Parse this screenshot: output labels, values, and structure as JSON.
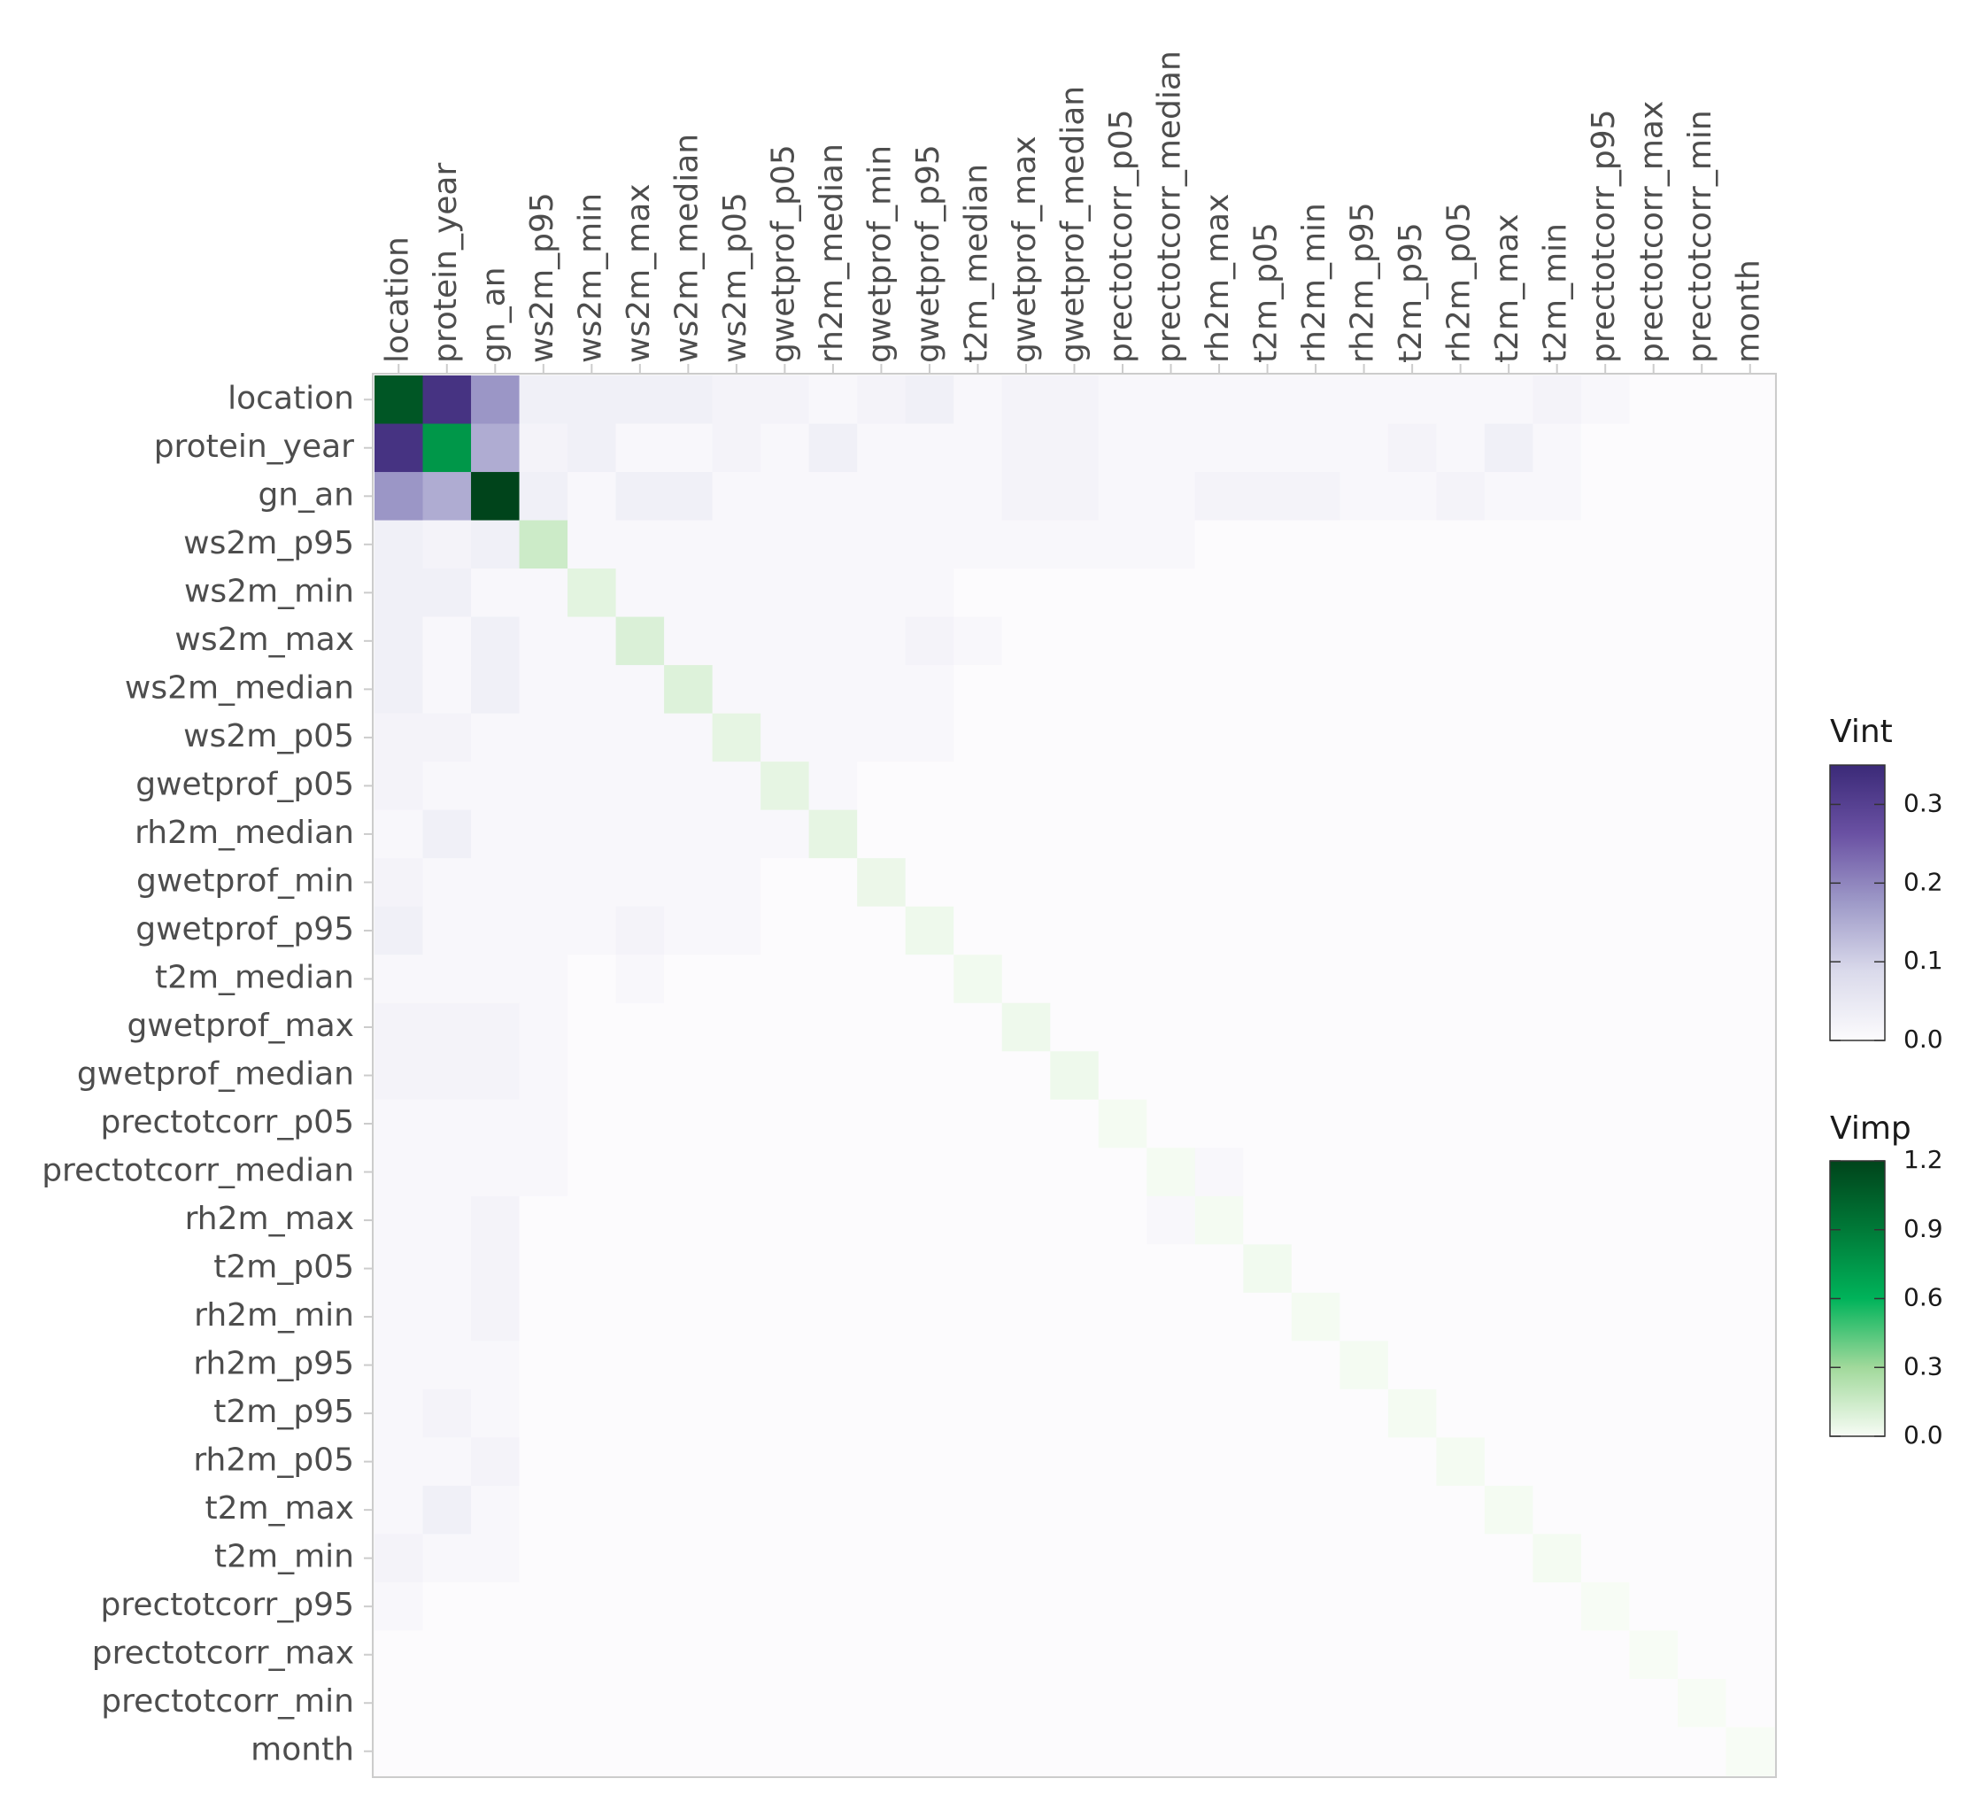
{
  "chart_data": {
    "type": "heatmap",
    "categories": [
      "location",
      "protein_year",
      "gn_an",
      "ws2m_p95",
      "ws2m_min",
      "ws2m_max",
      "ws2m_median",
      "ws2m_p05",
      "gwetprof_p05",
      "rh2m_median",
      "gwetprof_min",
      "gwetprof_p95",
      "t2m_median",
      "gwetprof_max",
      "gwetprof_median",
      "prectotcorr_p05",
      "prectotcorr_median",
      "rh2m_max",
      "t2m_p05",
      "rh2m_min",
      "rh2m_p95",
      "t2m_p95",
      "rh2m_p05",
      "t2m_max",
      "t2m_min",
      "prectotcorr_p95",
      "prectotcorr_max",
      "prectotcorr_min",
      "month"
    ],
    "vimp": [
      1.1,
      0.75,
      1.2,
      0.15,
      0.07,
      0.1,
      0.09,
      0.06,
      0.06,
      0.06,
      0.04,
      0.03,
      0.02,
      0.03,
      0.03,
      0.01,
      0.01,
      0.01,
      0.02,
      0.01,
      0.01,
      0.01,
      0.01,
      0.01,
      0.01,
      0,
      0,
      0,
      0
    ],
    "vint": [
      [
        null,
        0.33,
        0.18,
        0.03,
        0.03,
        0.03,
        0.03,
        0.02,
        0.02,
        0.01,
        0.02,
        0.03,
        0.01,
        0.02,
        0.02,
        0.01,
        0.01,
        0.01,
        0.01,
        0.01,
        0.01,
        0.01,
        0.01,
        0.01,
        0.02,
        0.01,
        0,
        0,
        0
      ],
      [
        0.33,
        null,
        0.15,
        0.02,
        0.03,
        0.01,
        0.01,
        0.02,
        0.01,
        0.03,
        0.01,
        0.01,
        0.01,
        0.02,
        0.02,
        0.01,
        0.01,
        0.01,
        0.01,
        0.01,
        0.01,
        0.02,
        0.01,
        0.03,
        0.01,
        0,
        0,
        0,
        0
      ],
      [
        0.18,
        0.15,
        null,
        0.03,
        0.01,
        0.03,
        0.03,
        0.01,
        0.01,
        0.01,
        0.01,
        0.01,
        0.01,
        0.02,
        0.02,
        0.01,
        0.01,
        0.02,
        0.02,
        0.02,
        0.01,
        0.01,
        0.02,
        0.01,
        0.01,
        0,
        0,
        0,
        0
      ],
      [
        0.03,
        0.02,
        0.03,
        null,
        0.01,
        0.01,
        0.01,
        0.01,
        0.01,
        0.01,
        0.01,
        0.01,
        0.01,
        0.01,
        0.01,
        0.01,
        0.01,
        0,
        0,
        0,
        0,
        0,
        0,
        0,
        0,
        0,
        0,
        0,
        0
      ],
      [
        0.03,
        0.03,
        0.01,
        0.01,
        null,
        0.01,
        0.01,
        0.01,
        0.01,
        0.01,
        0.01,
        0.01,
        0,
        0,
        0,
        0,
        0,
        0,
        0,
        0,
        0,
        0,
        0,
        0,
        0,
        0,
        0,
        0,
        0
      ],
      [
        0.03,
        0.01,
        0.03,
        0.01,
        0.01,
        null,
        0.01,
        0.01,
        0.01,
        0.01,
        0.01,
        0.02,
        0.01,
        0,
        0,
        0,
        0,
        0,
        0,
        0,
        0,
        0,
        0,
        0,
        0,
        0,
        0,
        0,
        0
      ],
      [
        0.03,
        0.01,
        0.03,
        0.01,
        0.01,
        0.01,
        null,
        0.01,
        0.01,
        0.01,
        0.01,
        0.01,
        0,
        0,
        0,
        0,
        0,
        0,
        0,
        0,
        0,
        0,
        0,
        0,
        0,
        0,
        0,
        0,
        0
      ],
      [
        0.02,
        0.02,
        0.01,
        0.01,
        0.01,
        0.01,
        0.01,
        null,
        0.01,
        0.01,
        0.01,
        0.01,
        0,
        0,
        0,
        0,
        0,
        0,
        0,
        0,
        0,
        0,
        0,
        0,
        0,
        0,
        0,
        0,
        0
      ],
      [
        0.02,
        0.01,
        0.01,
        0.01,
        0.01,
        0.01,
        0.01,
        0.01,
        null,
        0.01,
        0,
        0,
        0,
        0,
        0,
        0,
        0,
        0,
        0,
        0,
        0,
        0,
        0,
        0,
        0,
        0,
        0,
        0,
        0
      ],
      [
        0.01,
        0.03,
        0.01,
        0.01,
        0.01,
        0.01,
        0.01,
        0.01,
        0.01,
        null,
        0,
        0,
        0,
        0,
        0,
        0,
        0,
        0,
        0,
        0,
        0,
        0,
        0,
        0,
        0,
        0,
        0,
        0,
        0
      ],
      [
        0.02,
        0.01,
        0.01,
        0.01,
        0.01,
        0.01,
        0.01,
        0.01,
        0,
        0,
        null,
        0,
        0,
        0,
        0,
        0,
        0,
        0,
        0,
        0,
        0,
        0,
        0,
        0,
        0,
        0,
        0,
        0,
        0
      ],
      [
        0.03,
        0.01,
        0.01,
        0.01,
        0.01,
        0.02,
        0.01,
        0.01,
        0,
        0,
        0,
        null,
        0,
        0,
        0,
        0,
        0,
        0,
        0,
        0,
        0,
        0,
        0,
        0,
        0,
        0,
        0,
        0,
        0
      ],
      [
        0.01,
        0.01,
        0.01,
        0.01,
        0,
        0.01,
        0,
        0,
        0,
        0,
        0,
        0,
        null,
        0,
        0,
        0,
        0,
        0,
        0,
        0,
        0,
        0,
        0,
        0,
        0,
        0,
        0,
        0,
        0
      ],
      [
        0.02,
        0.02,
        0.02,
        0.01,
        0,
        0,
        0,
        0,
        0,
        0,
        0,
        0,
        0,
        null,
        0,
        0,
        0,
        0,
        0,
        0,
        0,
        0,
        0,
        0,
        0,
        0,
        0,
        0,
        0
      ],
      [
        0.02,
        0.02,
        0.02,
        0.01,
        0,
        0,
        0,
        0,
        0,
        0,
        0,
        0,
        0,
        0,
        null,
        0,
        0,
        0,
        0,
        0,
        0,
        0,
        0,
        0,
        0,
        0,
        0,
        0,
        0
      ],
      [
        0.01,
        0.01,
        0.01,
        0.01,
        0,
        0,
        0,
        0,
        0,
        0,
        0,
        0,
        0,
        0,
        0,
        null,
        0,
        0,
        0,
        0,
        0,
        0,
        0,
        0,
        0,
        0,
        0,
        0,
        0
      ],
      [
        0.01,
        0.01,
        0.01,
        0.01,
        0,
        0,
        0,
        0,
        0,
        0,
        0,
        0,
        0,
        0,
        0,
        0,
        null,
        0.01,
        0,
        0,
        0,
        0,
        0,
        0,
        0,
        0,
        0,
        0,
        0
      ],
      [
        0.01,
        0.01,
        0.02,
        0,
        0,
        0,
        0,
        0,
        0,
        0,
        0,
        0,
        0,
        0,
        0,
        0,
        0.01,
        null,
        0,
        0,
        0,
        0,
        0,
        0,
        0,
        0,
        0,
        0,
        0
      ],
      [
        0.01,
        0.01,
        0.02,
        0,
        0,
        0,
        0,
        0,
        0,
        0,
        0,
        0,
        0,
        0,
        0,
        0,
        0,
        0,
        null,
        0,
        0,
        0,
        0,
        0,
        0,
        0,
        0,
        0,
        0
      ],
      [
        0.01,
        0.01,
        0.02,
        0,
        0,
        0,
        0,
        0,
        0,
        0,
        0,
        0,
        0,
        0,
        0,
        0,
        0,
        0,
        0,
        null,
        0,
        0,
        0,
        0,
        0,
        0,
        0,
        0,
        0
      ],
      [
        0.01,
        0.01,
        0.01,
        0,
        0,
        0,
        0,
        0,
        0,
        0,
        0,
        0,
        0,
        0,
        0,
        0,
        0,
        0,
        0,
        0,
        null,
        0,
        0,
        0,
        0,
        0,
        0,
        0,
        0
      ],
      [
        0.01,
        0.02,
        0.01,
        0,
        0,
        0,
        0,
        0,
        0,
        0,
        0,
        0,
        0,
        0,
        0,
        0,
        0,
        0,
        0,
        0,
        0,
        null,
        0,
        0,
        0,
        0,
        0,
        0,
        0
      ],
      [
        0.01,
        0.01,
        0.02,
        0,
        0,
        0,
        0,
        0,
        0,
        0,
        0,
        0,
        0,
        0,
        0,
        0,
        0,
        0,
        0,
        0,
        0,
        0,
        null,
        0,
        0,
        0,
        0,
        0,
        0
      ],
      [
        0.01,
        0.03,
        0.01,
        0,
        0,
        0,
        0,
        0,
        0,
        0,
        0,
        0,
        0,
        0,
        0,
        0,
        0,
        0,
        0,
        0,
        0,
        0,
        0,
        null,
        0,
        0,
        0,
        0,
        0
      ],
      [
        0.02,
        0.01,
        0.01,
        0,
        0,
        0,
        0,
        0,
        0,
        0,
        0,
        0,
        0,
        0,
        0,
        0,
        0,
        0,
        0,
        0,
        0,
        0,
        0,
        0,
        null,
        0,
        0,
        0,
        0
      ],
      [
        0.01,
        0,
        0,
        0,
        0,
        0,
        0,
        0,
        0,
        0,
        0,
        0,
        0,
        0,
        0,
        0,
        0,
        0,
        0,
        0,
        0,
        0,
        0,
        0,
        0,
        null,
        0,
        0,
        0
      ],
      [
        0,
        0,
        0,
        0,
        0,
        0,
        0,
        0,
        0,
        0,
        0,
        0,
        0,
        0,
        0,
        0,
        0,
        0,
        0,
        0,
        0,
        0,
        0,
        0,
        0,
        0,
        null,
        0,
        0
      ],
      [
        0,
        0,
        0,
        0,
        0,
        0,
        0,
        0,
        0,
        0,
        0,
        0,
        0,
        0,
        0,
        0,
        0,
        0,
        0,
        0,
        0,
        0,
        0,
        0,
        0,
        0,
        0,
        null,
        0
      ],
      [
        0,
        0,
        0,
        0,
        0,
        0,
        0,
        0,
        0,
        0,
        0,
        0,
        0,
        0,
        0,
        0,
        0,
        0,
        0,
        0,
        0,
        0,
        0,
        0,
        0,
        0,
        0,
        0,
        null
      ]
    ],
    "vint_legend": {
      "title": "Vint",
      "lim": [
        0,
        0.35
      ],
      "ticks": [
        {
          "value": 0,
          "label": "0.0"
        },
        0.1,
        0.2,
        0.3
      ],
      "colors": [
        "#fcfbfd",
        "#dadaeb",
        "#9e9ac8",
        "#6a51a3",
        "#3b2a78"
      ]
    },
    "vimp_legend": {
      "title": "Vimp",
      "lim": [
        0,
        1.2
      ],
      "ticks": [
        {
          "value": 0,
          "label": "0.0"
        },
        0.3,
        0.6,
        0.9,
        1.2
      ],
      "colors": [
        "#f7fcf5",
        "#a1d99b",
        "#00b35a",
        "#007a38",
        "#00441b"
      ]
    }
  }
}
